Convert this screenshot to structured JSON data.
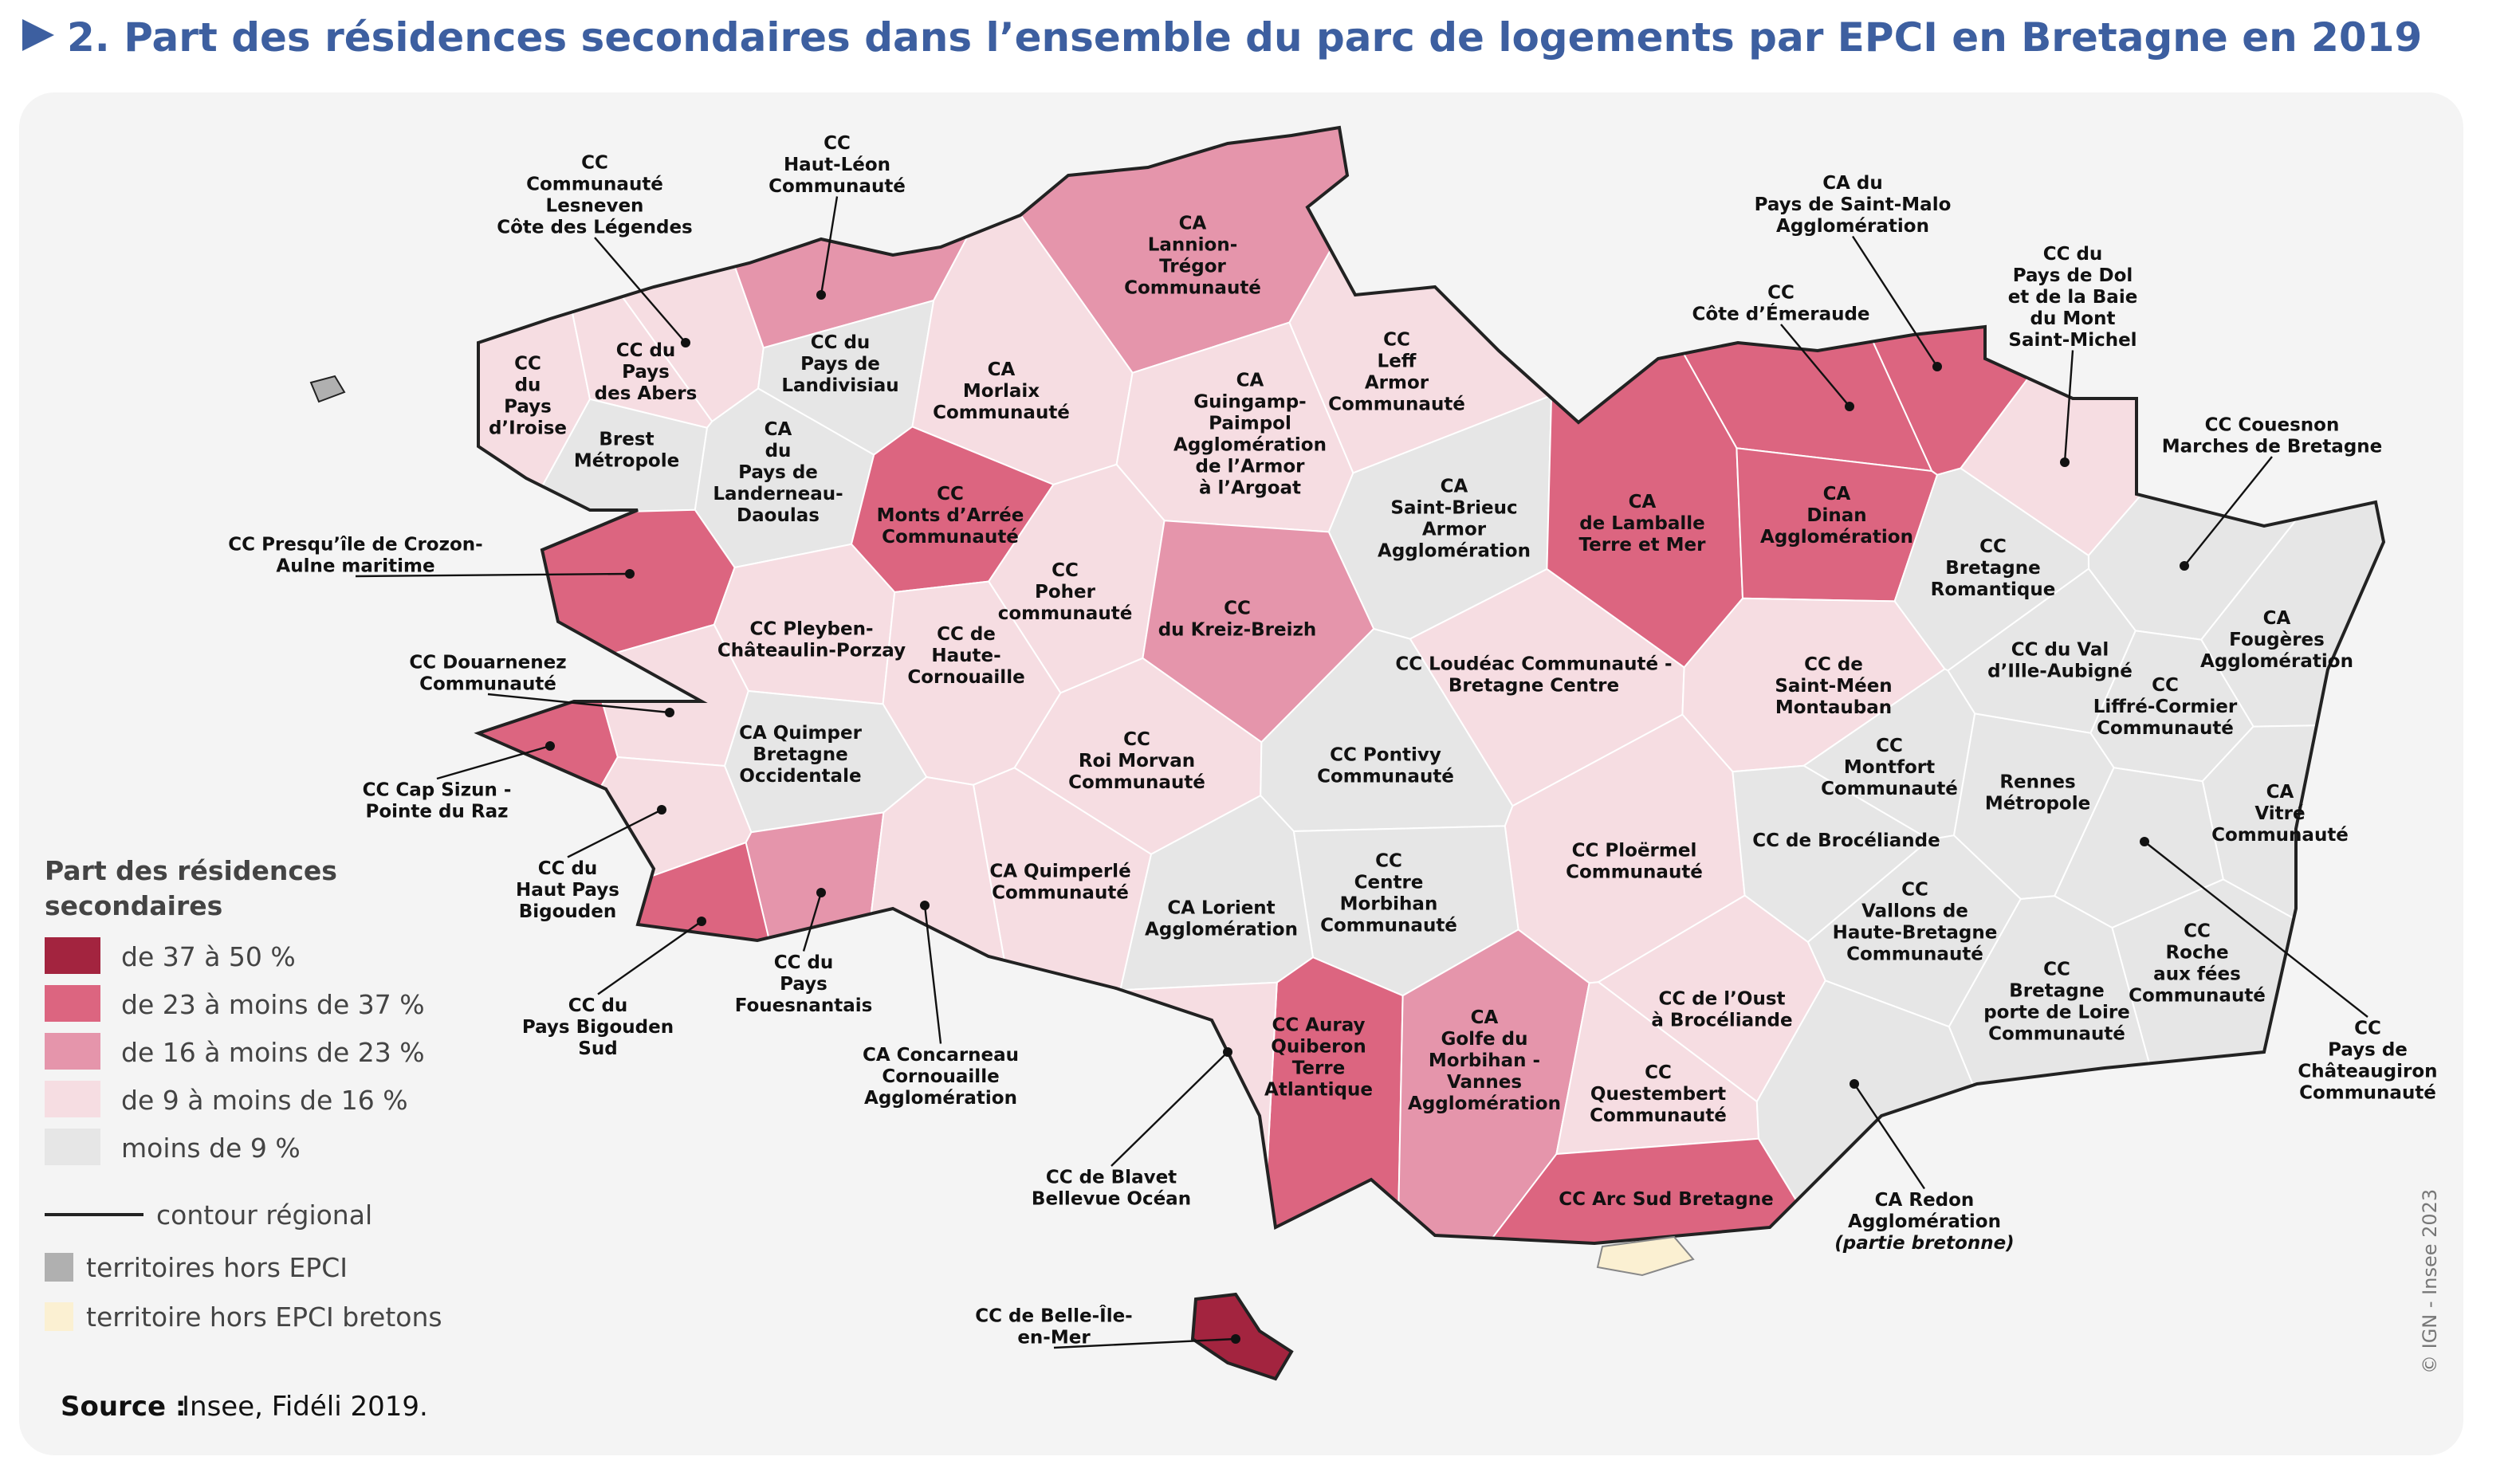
{
  "title": "2. Part des résidences secondaires dans l’ensemble du parc de logements par EPCI en Bretagne en 2019",
  "legend": {
    "title": [
      "Part des résidences",
      "secondaires"
    ],
    "classes": [
      {
        "label": "de 37 à 50 %",
        "color": "#a3243f"
      },
      {
        "label": "de 23 à moins de 37 %",
        "color": "#dc6580"
      },
      {
        "label": "de 16 à moins de 23 %",
        "color": "#e595ab"
      },
      {
        "label": "de 9 à moins de 16 %",
        "color": "#f6dde2"
      },
      {
        "label": "moins de 9 %",
        "color": "#e6e6e6"
      }
    ],
    "contour": "contour régional",
    "outside": {
      "label": "territoires hors EPCI",
      "color": "#b0b0b0"
    },
    "outside_breton": {
      "label": "territoire hors EPCI bretons",
      "color": "#fbf0d2"
    }
  },
  "regions": [
    {
      "lines": [
        "CC",
        "Communauté",
        "Lesneven",
        "Côte des Légendes"
      ],
      "color": "#f6dde2"
    },
    {
      "lines": [
        "CC",
        "Haut-Léon",
        "Communauté"
      ],
      "color": "#e595ab"
    },
    {
      "lines": [
        "CA",
        "Lannion-",
        "Trégor",
        "Communauté"
      ],
      "color": "#e595ab"
    },
    {
      "lines": [
        "CA du",
        "Pays de Saint-Malo",
        "Agglomération"
      ],
      "color": "#dc6580"
    },
    {
      "lines": [
        "CC du",
        "Pays de Dol",
        "et de la Baie",
        "du Mont",
        "Saint-Michel"
      ],
      "color": "#f6dde2"
    },
    {
      "lines": [
        "CC",
        "du",
        "Pays",
        "d’Iroise"
      ],
      "color": "#f6dde2"
    },
    {
      "lines": [
        "CC du",
        "Pays",
        "des Abers"
      ],
      "color": "#f6dde2"
    },
    {
      "lines": [
        "CC du",
        "Pays de",
        "Landivisiau"
      ],
      "color": "#e6e6e6"
    },
    {
      "lines": [
        "CA",
        "Morlaix",
        "Communauté"
      ],
      "color": "#f6dde2"
    },
    {
      "lines": [
        "CA",
        "Guingamp-",
        "Paimpol",
        "Agglomération",
        "de l’Armor",
        "à l’Argoat"
      ],
      "color": "#f6dde2"
    },
    {
      "lines": [
        "CC",
        "Leff",
        "Armor",
        "Communauté"
      ],
      "color": "#f6dde2"
    },
    {
      "lines": [
        "CC",
        "Côte d’Émeraude"
      ],
      "color": "#dc6580"
    },
    {
      "lines": [
        "Brest",
        "Métropole"
      ],
      "color": "#e6e6e6"
    },
    {
      "lines": [
        "CA",
        "du",
        "Pays de",
        "Landerneau-",
        "Daoulas"
      ],
      "color": "#e6e6e6"
    },
    {
      "lines": [
        "CC",
        "Monts d’Arrée",
        "Communauté"
      ],
      "color": "#dc6580"
    },
    {
      "lines": [
        "CA",
        "Saint-Brieuc",
        "Armor",
        "Agglomération"
      ],
      "color": "#e6e6e6"
    },
    {
      "lines": [
        "CA",
        "de Lamballe",
        "Terre et Mer"
      ],
      "color": "#dc6580"
    },
    {
      "lines": [
        "CA",
        "Dinan",
        "Agglomération"
      ],
      "color": "#dc6580"
    },
    {
      "lines": [
        "CC Couesnon",
        "Marches de Bretagne"
      ],
      "color": "#e6e6e6"
    },
    {
      "lines": [
        "CC Presqu’île de Crozon-",
        "Aulne maritime"
      ],
      "color": "#dc6580"
    },
    {
      "lines": [
        "CC",
        "Bretagne",
        "Romantique"
      ],
      "color": "#e6e6e6"
    },
    {
      "lines": [
        "CC",
        "Poher",
        "communauté"
      ],
      "color": "#f6dde2"
    },
    {
      "lines": [
        "CC",
        "du Kreiz-Breizh"
      ],
      "color": "#e595ab"
    },
    {
      "lines": [
        "CC Pleyben-",
        "Châteaulin-Porzay"
      ],
      "color": "#f6dde2"
    },
    {
      "lines": [
        "CC de",
        "Haute-",
        "Cornouaille"
      ],
      "color": "#f6dde2"
    },
    {
      "lines": [
        "CA",
        "Fougères",
        "Agglomération"
      ],
      "color": "#e6e6e6"
    },
    {
      "lines": [
        "CC Douarnenez",
        "Communauté"
      ],
      "color": "#f6dde2"
    },
    {
      "lines": [
        "CC Loudéac Communauté -",
        "Bretagne Centre"
      ],
      "color": "#f6dde2"
    },
    {
      "lines": [
        "CC du Val",
        "d’Ille-Aubigné"
      ],
      "color": "#e6e6e6"
    },
    {
      "lines": [
        "CC de",
        "Saint-Méen",
        "Montauban"
      ],
      "color": "#f6dde2"
    },
    {
      "lines": [
        "CC",
        "Liffré-Cormier",
        "Communauté"
      ],
      "color": "#e6e6e6"
    },
    {
      "lines": [
        "CA Quimper",
        "Bretagne",
        "Occidentale"
      ],
      "color": "#e6e6e6"
    },
    {
      "lines": [
        "CC",
        "Roi Morvan",
        "Communauté"
      ],
      "color": "#f6dde2"
    },
    {
      "lines": [
        "CC Pontivy",
        "Communauté"
      ],
      "color": "#e6e6e6"
    },
    {
      "lines": [
        "CC",
        "Montfort",
        "Communauté"
      ],
      "color": "#e6e6e6"
    },
    {
      "lines": [
        "CC Cap Sizun -",
        "Pointe du Raz"
      ],
      "color": "#dc6580"
    },
    {
      "lines": [
        "Rennes",
        "Métropole"
      ],
      "color": "#e6e6e6"
    },
    {
      "lines": [
        "CA",
        "Vitré",
        "Communauté"
      ],
      "color": "#e6e6e6"
    },
    {
      "lines": [
        "CC du",
        "Haut Pays",
        "Bigouden"
      ],
      "color": "#f6dde2"
    },
    {
      "lines": [
        "CC Ploërmel",
        "Communauté"
      ],
      "color": "#f6dde2"
    },
    {
      "lines": [
        "CC de Brocéliande"
      ],
      "color": "#e6e6e6"
    },
    {
      "lines": [
        "CA Quimperlé",
        "Communauté"
      ],
      "color": "#f6dde2"
    },
    {
      "lines": [
        "CC",
        "Centre",
        "Morbihan",
        "Communauté"
      ],
      "color": "#e6e6e6"
    },
    {
      "lines": [
        "CC",
        "Pays de",
        "Châteaugiron",
        "Communauté"
      ],
      "color": "#e6e6e6"
    },
    {
      "lines": [
        "CA Lorient",
        "Agglomération"
      ],
      "color": "#e6e6e6"
    },
    {
      "lines": [
        "CC",
        "Vallons de",
        "Haute-Bretagne",
        "Communauté"
      ],
      "color": "#e6e6e6"
    },
    {
      "lines": [
        "CC",
        "Roche",
        "aux fées",
        "Communauté"
      ],
      "color": "#e6e6e6"
    },
    {
      "lines": [
        "CC du",
        "Pays",
        "Fouesnantais"
      ],
      "color": "#e595ab"
    },
    {
      "lines": [
        "CC du",
        "Pays Bigouden",
        "Sud"
      ],
      "color": "#dc6580"
    },
    {
      "lines": [
        "CA Concarneau",
        "Cornouaille",
        "Agglomération"
      ],
      "color": "#f6dde2"
    },
    {
      "lines": [
        "CC",
        "Bretagne",
        "porte de Loire",
        "Communauté"
      ],
      "color": "#e6e6e6"
    },
    {
      "lines": [
        "CC de l’Oust",
        "à Brocéliande"
      ],
      "color": "#f6dde2"
    },
    {
      "lines": [
        "CC Auray",
        "Quiberon",
        "Terre",
        "Atlantique"
      ],
      "color": "#dc6580"
    },
    {
      "lines": [
        "CA",
        "Golfe du",
        "Morbihan -",
        "Vannes",
        "Agglomération"
      ],
      "color": "#e595ab"
    },
    {
      "lines": [
        "CC",
        "Questembert",
        "Communauté"
      ],
      "color": "#f6dde2"
    },
    {
      "lines": [
        "CC de Blavet",
        "Bellevue Océan"
      ],
      "color": "#f6dde2"
    },
    {
      "lines": [
        "CA Redon",
        "Agglomération"
      ],
      "note": "(partie bretonne)",
      "color": "#e6e6e6"
    },
    {
      "lines": [
        "CC Arc Sud Bretagne"
      ],
      "color": "#dc6580"
    },
    {
      "lines": [
        "CC de Belle-Île-",
        "en-Mer"
      ],
      "color": "#a3243f"
    }
  ],
  "source": {
    "label": "Source :",
    "text": "Insee, Fidéli 2019."
  },
  "credit": "© IGN - Insee 2023"
}
